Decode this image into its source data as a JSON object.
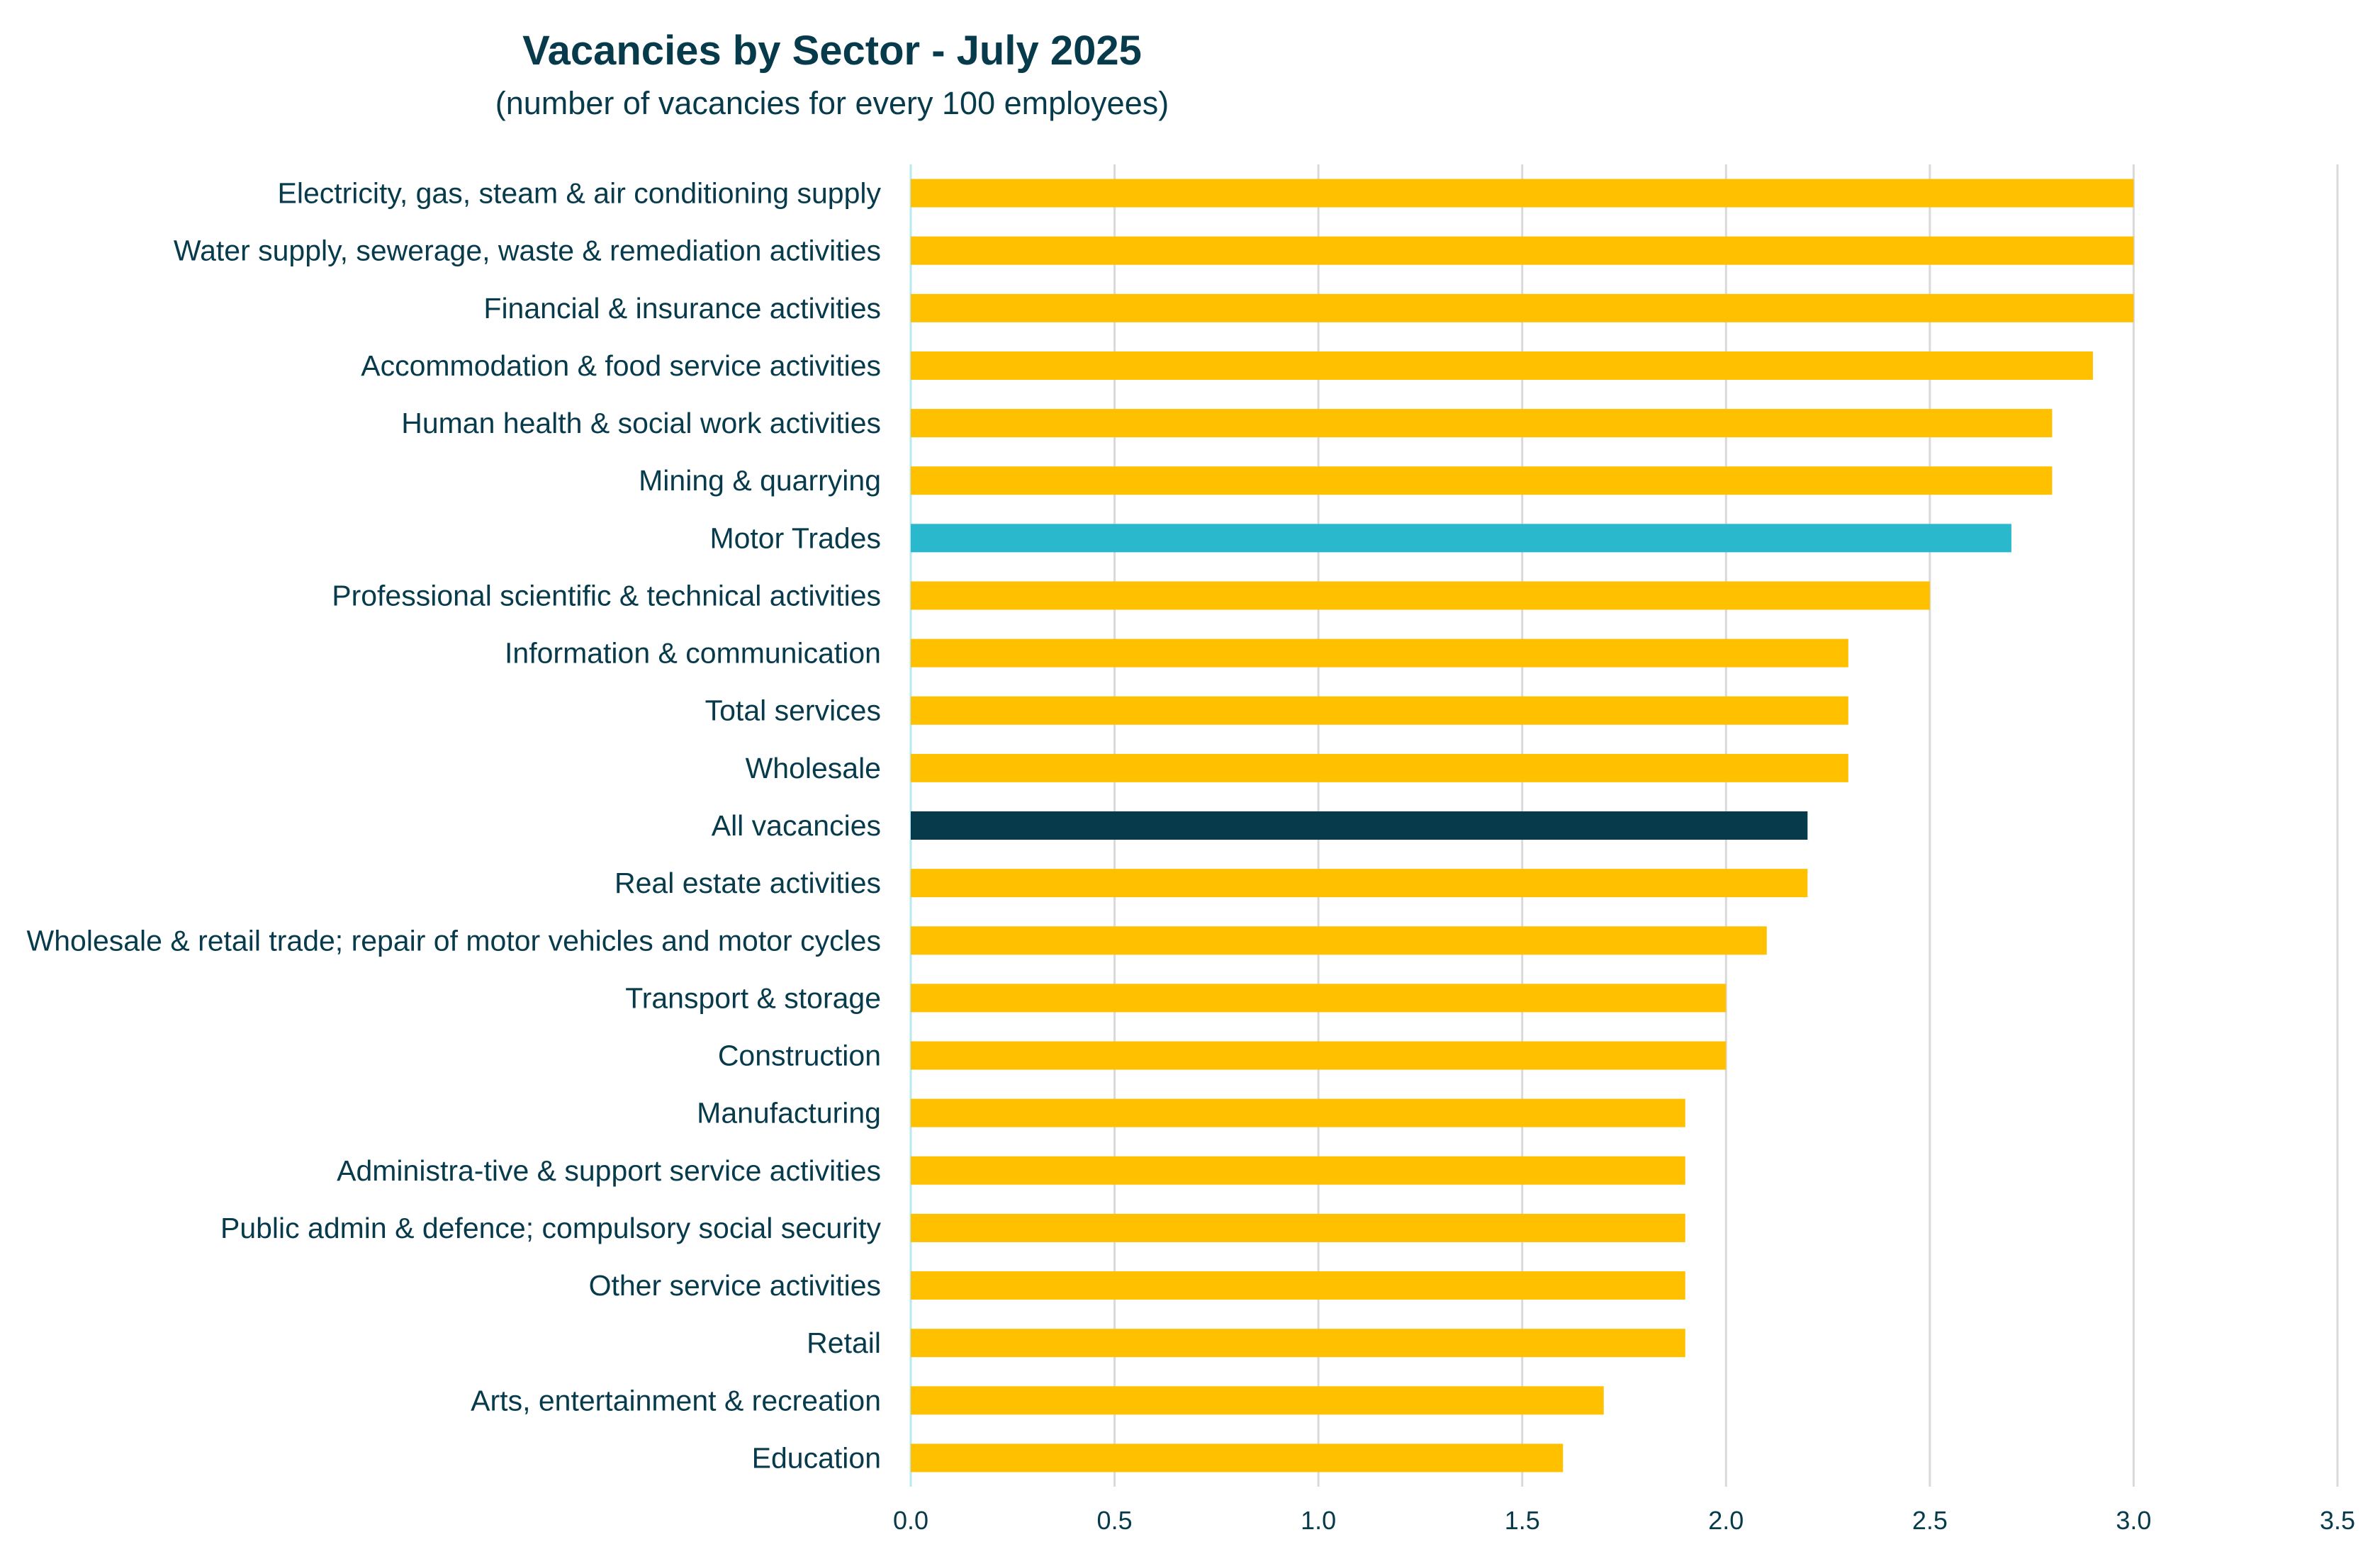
{
  "chart_data": {
    "type": "bar",
    "orientation": "horizontal",
    "title": "Vacancies by Sector  - July 2025",
    "subtitle": "(number of vacancies for every 100 employees)",
    "categories": [
      "Electricity, gas, steam & air conditioning supply",
      "Water supply, sewerage, waste & remediation activities",
      "Financial & insurance activities",
      "Accommodation & food service activities",
      "Human health & social work activities",
      "Mining & quarrying",
      "Motor Trades",
      "Professional scientific & technical activities",
      "Information & communication",
      "Total services",
      "Wholesale",
      "All vacancies",
      "Real estate activities",
      "Wholesale & retail trade; repair of motor vehicles and motor cycles",
      "Transport & storage",
      "Construction",
      "Manufacturing",
      "Administra-tive & support service activities",
      "Public admin & defence; compulsory social security",
      "Other service activities",
      "Retail",
      "Arts, entertainment & recreation",
      "Education"
    ],
    "values": [
      3.0,
      3.0,
      3.0,
      2.9,
      2.8,
      2.8,
      2.7,
      2.5,
      2.3,
      2.3,
      2.3,
      2.2,
      2.2,
      2.1,
      2.0,
      2.0,
      1.9,
      1.9,
      1.9,
      1.9,
      1.9,
      1.7,
      1.6
    ],
    "bar_colors": [
      "#ffc000",
      "#ffc000",
      "#ffc000",
      "#ffc000",
      "#ffc000",
      "#ffc000",
      "#2ab8cc",
      "#ffc000",
      "#ffc000",
      "#ffc000",
      "#ffc000",
      "#073b4c",
      "#ffc000",
      "#ffc000",
      "#ffc000",
      "#ffc000",
      "#ffc000",
      "#ffc000",
      "#ffc000",
      "#ffc000",
      "#ffc000",
      "#ffc000",
      "#ffc000"
    ],
    "xlim": [
      0,
      3.5
    ],
    "x_ticks": [
      "0.0",
      "0.5",
      "1.0",
      "1.5",
      "2.0",
      "2.5",
      "3.0",
      "3.5"
    ],
    "grid": true,
    "legend": false,
    "colors": {
      "default_bar": "#ffc000",
      "highlight_motor_trades": "#2ab8cc",
      "highlight_all_vacancies": "#073b4c",
      "text": "#073b4c",
      "gridline": "#d9d9d9",
      "axis_line": "#b8e8f0"
    }
  }
}
